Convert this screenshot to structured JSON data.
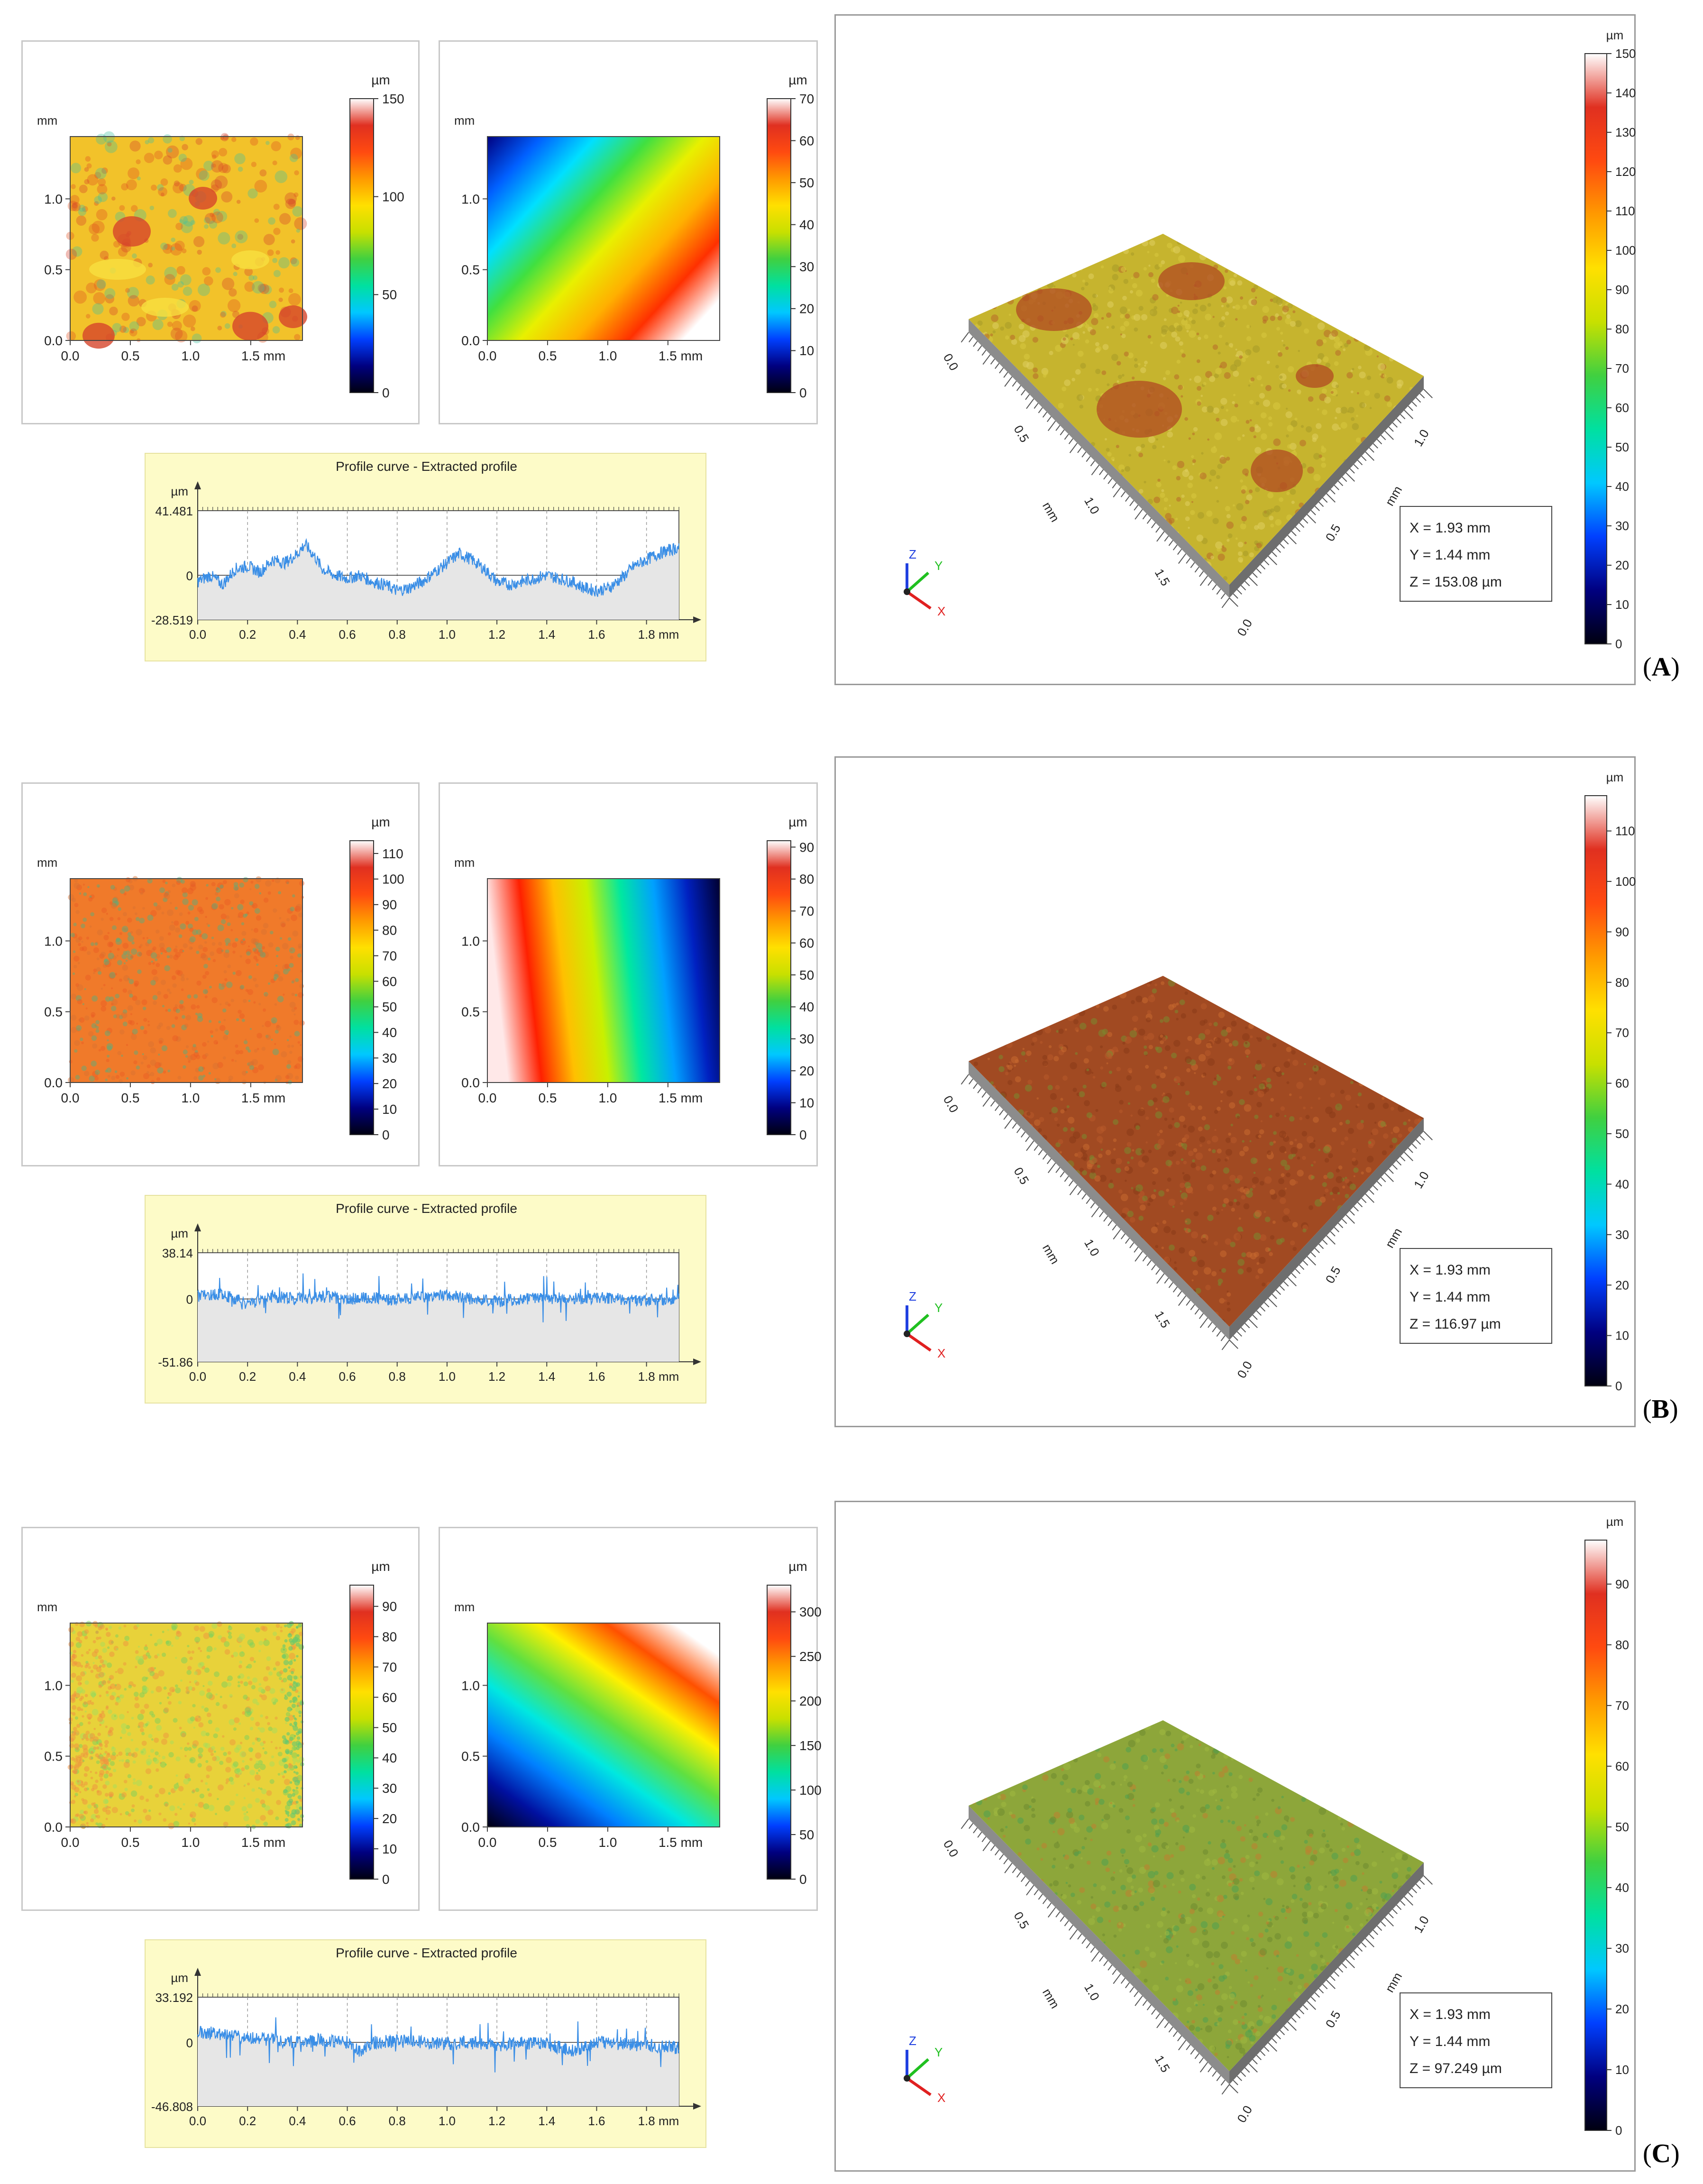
{
  "rows": [
    {
      "id": "A",
      "label": "A",
      "height_map": {
        "y_unit": "mm",
        "unit": "µm",
        "x_ticks": [
          "0.0",
          "0.5",
          "1.0",
          "1.5 mm"
        ],
        "y_ticks": [
          "0.0",
          "0.5",
          "1.0"
        ],
        "colorbar_ticks": [
          "0",
          "50",
          "100",
          "150"
        ],
        "zmax": 150
      },
      "form_map": {
        "y_unit": "mm",
        "unit": "µm",
        "x_ticks": [
          "0.0",
          "0.5",
          "1.0",
          "1.5 mm"
        ],
        "y_ticks": [
          "0.0",
          "0.5",
          "1.0"
        ],
        "colorbar_ticks": [
          "0",
          "10",
          "20",
          "30",
          "40",
          "50",
          "60",
          "70"
        ],
        "zmax": 70,
        "gradient": "diag-a"
      },
      "profile": {
        "title": "Profile curve - Extracted profile",
        "yunit": "µm",
        "ymax_label": "41.481",
        "zero_label": "0",
        "ymin_label": "-28.519",
        "x_ticks": [
          "0.0",
          "0.2",
          "0.4",
          "0.6",
          "0.8",
          "1.0",
          "1.2",
          "1.4",
          "1.6",
          "1.8 mm"
        ],
        "ymax": 41.481,
        "ymin": -28.519,
        "shape": [
          {
            "x": 0.0,
            "y": -4
          },
          {
            "x": 0.05,
            "y": 0
          },
          {
            "x": 0.1,
            "y": -6
          },
          {
            "x": 0.15,
            "y": 4
          },
          {
            "x": 0.2,
            "y": 6
          },
          {
            "x": 0.25,
            "y": 2
          },
          {
            "x": 0.3,
            "y": 10
          },
          {
            "x": 0.35,
            "y": 8
          },
          {
            "x": 0.4,
            "y": 14
          },
          {
            "x": 0.43,
            "y": 20
          },
          {
            "x": 0.47,
            "y": 12
          },
          {
            "x": 0.5,
            "y": 4
          },
          {
            "x": 0.55,
            "y": 0
          },
          {
            "x": 0.6,
            "y": -2
          },
          {
            "x": 0.65,
            "y": 0
          },
          {
            "x": 0.7,
            "y": -4
          },
          {
            "x": 0.75,
            "y": -6
          },
          {
            "x": 0.8,
            "y": -10
          },
          {
            "x": 0.85,
            "y": -8
          },
          {
            "x": 0.9,
            "y": -4
          },
          {
            "x": 0.95,
            "y": 2
          },
          {
            "x": 1.0,
            "y": 8
          },
          {
            "x": 1.05,
            "y": 14
          },
          {
            "x": 1.1,
            "y": 10
          },
          {
            "x": 1.15,
            "y": 4
          },
          {
            "x": 1.2,
            "y": -4
          },
          {
            "x": 1.25,
            "y": -6
          },
          {
            "x": 1.3,
            "y": -4
          },
          {
            "x": 1.35,
            "y": -2
          },
          {
            "x": 1.4,
            "y": 0
          },
          {
            "x": 1.45,
            "y": -2
          },
          {
            "x": 1.5,
            "y": -4
          },
          {
            "x": 1.55,
            "y": -8
          },
          {
            "x": 1.6,
            "y": -10
          },
          {
            "x": 1.65,
            "y": -8
          },
          {
            "x": 1.7,
            "y": -2
          },
          {
            "x": 1.75,
            "y": 6
          },
          {
            "x": 1.8,
            "y": 10
          },
          {
            "x": 1.85,
            "y": 14
          },
          {
            "x": 1.93,
            "y": 18
          }
        ]
      },
      "view3d": {
        "unit": "µm",
        "colorbar_ticks": [
          "0",
          "10",
          "20",
          "30",
          "40",
          "50",
          "60",
          "70",
          "80",
          "90",
          "100",
          "110",
          "120",
          "130",
          "140",
          "150"
        ],
        "zmax": 150,
        "readout": {
          "x": "X = 1.93 mm",
          "y": "Y = 1.44 mm",
          "z": "Z = 153.08 µm"
        },
        "axis_ticks": [
          "0.0",
          "0.5",
          "1.0",
          "1.5"
        ],
        "axis_unit": "mm",
        "colors": {
          "base": "#c6b42e",
          "spot": "#b04a22"
        }
      }
    },
    {
      "id": "B",
      "label": "B",
      "height_map": {
        "y_unit": "mm",
        "unit": "µm",
        "x_ticks": [
          "0.0",
          "0.5",
          "1.0",
          "1.5 mm"
        ],
        "y_ticks": [
          "0.0",
          "0.5",
          "1.0"
        ],
        "colorbar_ticks": [
          "0",
          "10",
          "20",
          "30",
          "40",
          "50",
          "60",
          "70",
          "80",
          "90",
          "100",
          "110"
        ],
        "zmax": 115
      },
      "form_map": {
        "y_unit": "mm",
        "unit": "µm",
        "x_ticks": [
          "0.0",
          "0.5",
          "1.0",
          "1.5 mm"
        ],
        "y_ticks": [
          "0.0",
          "0.5",
          "1.0"
        ],
        "colorbar_ticks": [
          "0",
          "10",
          "20",
          "30",
          "40",
          "50",
          "60",
          "70",
          "80",
          "90"
        ],
        "zmax": 92,
        "gradient": "horiz-b"
      },
      "profile": {
        "title": "Profile curve - Extracted profile",
        "yunit": "µm",
        "ymax_label": "38.14",
        "zero_label": "0",
        "ymin_label": "-51.86",
        "x_ticks": [
          "0.0",
          "0.2",
          "0.4",
          "0.6",
          "0.8",
          "1.0",
          "1.2",
          "1.4",
          "1.6",
          "1.8 mm"
        ],
        "ymax": 38.14,
        "ymin": -51.86,
        "shape": [
          {
            "x": 0.0,
            "y": 2
          },
          {
            "x": 0.1,
            "y": 4
          },
          {
            "x": 0.2,
            "y": -4
          },
          {
            "x": 0.3,
            "y": 2
          },
          {
            "x": 0.4,
            "y": 0
          },
          {
            "x": 0.5,
            "y": 2
          },
          {
            "x": 0.6,
            "y": 0
          },
          {
            "x": 0.7,
            "y": 1
          },
          {
            "x": 0.8,
            "y": -1
          },
          {
            "x": 0.9,
            "y": 2
          },
          {
            "x": 1.0,
            "y": 3
          },
          {
            "x": 1.1,
            "y": 0
          },
          {
            "x": 1.2,
            "y": -2
          },
          {
            "x": 1.3,
            "y": 0
          },
          {
            "x": 1.4,
            "y": 1
          },
          {
            "x": 1.5,
            "y": 0
          },
          {
            "x": 1.6,
            "y": 1
          },
          {
            "x": 1.7,
            "y": 0
          },
          {
            "x": 1.8,
            "y": -1
          },
          {
            "x": 1.93,
            "y": 0
          }
        ]
      },
      "view3d": {
        "unit": "µm",
        "colorbar_ticks": [
          "0",
          "10",
          "20",
          "30",
          "40",
          "50",
          "60",
          "70",
          "80",
          "90",
          "100",
          "110"
        ],
        "zmax": 117,
        "readout": {
          "x": "X = 1.93 mm",
          "y": "Y = 1.44 mm",
          "z": "Z = 116.97 µm"
        },
        "axis_ticks": [
          "0.0",
          "0.5",
          "1.0",
          "1.5"
        ],
        "axis_unit": "mm",
        "colors": {
          "base": "#a14a22",
          "spot": "#8a3a1a"
        }
      }
    },
    {
      "id": "C",
      "label": "C",
      "height_map": {
        "y_unit": "mm",
        "unit": "µm",
        "x_ticks": [
          "0.0",
          "0.5",
          "1.0",
          "1.5 mm"
        ],
        "y_ticks": [
          "0.0",
          "0.5",
          "1.0"
        ],
        "colorbar_ticks": [
          "0",
          "10",
          "20",
          "30",
          "40",
          "50",
          "60",
          "70",
          "80",
          "90"
        ],
        "zmax": 97
      },
      "form_map": {
        "y_unit": "mm",
        "unit": "µm",
        "x_ticks": [
          "0.0",
          "0.5",
          "1.0",
          "1.5 mm"
        ],
        "y_ticks": [
          "0.0",
          "0.5",
          "1.0"
        ],
        "colorbar_ticks": [
          "0",
          "50",
          "100",
          "150",
          "200",
          "250",
          "300"
        ],
        "zmax": 330,
        "gradient": "diag-c"
      },
      "profile": {
        "title": "Profile curve - Extracted profile",
        "yunit": "µm",
        "ymax_label": "33.192",
        "zero_label": "0",
        "ymin_label": "-46.808",
        "x_ticks": [
          "0.0",
          "0.2",
          "0.4",
          "0.6",
          "0.8",
          "1.0",
          "1.2",
          "1.4",
          "1.6",
          "1.8 mm"
        ],
        "ymax": 33.192,
        "ymin": -46.808,
        "shape": [
          {
            "x": 0.0,
            "y": 8
          },
          {
            "x": 0.1,
            "y": 6
          },
          {
            "x": 0.2,
            "y": 4
          },
          {
            "x": 0.3,
            "y": 2
          },
          {
            "x": 0.4,
            "y": 0
          },
          {
            "x": 0.5,
            "y": 2
          },
          {
            "x": 0.6,
            "y": 0
          },
          {
            "x": 0.65,
            "y": -6
          },
          {
            "x": 0.7,
            "y": 0
          },
          {
            "x": 0.8,
            "y": 1
          },
          {
            "x": 0.9,
            "y": 0
          },
          {
            "x": 1.0,
            "y": -1
          },
          {
            "x": 1.1,
            "y": 0
          },
          {
            "x": 1.2,
            "y": -2
          },
          {
            "x": 1.3,
            "y": 0
          },
          {
            "x": 1.4,
            "y": -1
          },
          {
            "x": 1.5,
            "y": -6
          },
          {
            "x": 1.6,
            "y": 0
          },
          {
            "x": 1.7,
            "y": -1
          },
          {
            "x": 1.8,
            "y": -2
          },
          {
            "x": 1.93,
            "y": -4
          }
        ]
      },
      "view3d": {
        "unit": "µm",
        "colorbar_ticks": [
          "0",
          "10",
          "20",
          "30",
          "40",
          "50",
          "60",
          "70",
          "80",
          "90"
        ],
        "zmax": 97.249,
        "readout": {
          "x": "X = 1.93 mm",
          "y": "Y = 1.44 mm",
          "z": "Z = 97.249 µm"
        },
        "axis_ticks": [
          "0.0",
          "0.5",
          "1.0",
          "1.5"
        ],
        "axis_unit": "mm",
        "colors": {
          "base": "#8da63a",
          "spot": "#b5762e"
        }
      }
    }
  ],
  "chart_data": [
    {
      "type": "line",
      "panel": "A-profile",
      "title": "Profile curve - Extracted profile",
      "ylabel": "µm",
      "xlim": [
        0,
        1.93
      ],
      "ylim": [
        -28.519,
        41.481
      ],
      "x": [
        0.0,
        0.2,
        0.43,
        0.6,
        0.8,
        1.05,
        1.2,
        1.4,
        1.6,
        1.93
      ],
      "y": [
        -4,
        6,
        20,
        -2,
        -10,
        14,
        -4,
        0,
        -10,
        18
      ]
    },
    {
      "type": "line",
      "panel": "B-profile",
      "title": "Profile curve - Extracted profile",
      "ylabel": "µm",
      "xlim": [
        0,
        1.93
      ],
      "ylim": [
        -51.86,
        38.14
      ],
      "x": [
        0.0,
        0.2,
        0.4,
        0.6,
        0.8,
        1.0,
        1.2,
        1.4,
        1.6,
        1.93
      ],
      "y": [
        2,
        -4,
        0,
        0,
        -1,
        3,
        -2,
        1,
        1,
        0
      ]
    },
    {
      "type": "line",
      "panel": "C-profile",
      "title": "Profile curve - Extracted profile",
      "ylabel": "µm",
      "xlim": [
        0,
        1.93
      ],
      "ylim": [
        -46.808,
        33.192
      ],
      "x": [
        0.0,
        0.2,
        0.4,
        0.6,
        0.65,
        0.8,
        1.0,
        1.2,
        1.5,
        1.93
      ],
      "y": [
        8,
        4,
        0,
        0,
        -6,
        1,
        -1,
        -2,
        -6,
        -4
      ]
    },
    {
      "type": "heatmap",
      "panel": "A-3D",
      "xlabel": "mm",
      "ylabel": "mm",
      "unit": "µm",
      "zlim": [
        0,
        153.08
      ]
    },
    {
      "type": "heatmap",
      "panel": "B-3D",
      "xlabel": "mm",
      "ylabel": "mm",
      "unit": "µm",
      "zlim": [
        0,
        116.97
      ]
    },
    {
      "type": "heatmap",
      "panel": "C-3D",
      "xlabel": "mm",
      "ylabel": "mm",
      "unit": "µm",
      "zlim": [
        0,
        97.249
      ]
    }
  ]
}
